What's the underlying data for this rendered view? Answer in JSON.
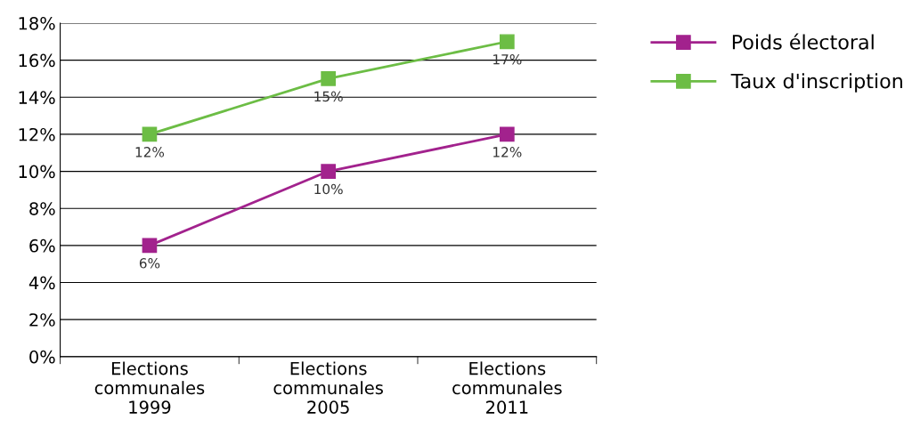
{
  "chart_data": {
    "type": "line",
    "categories": [
      "Elections\ncommunales\n1999",
      "Elections\ncommunales\n2005",
      "Elections\ncommunales\n2011"
    ],
    "series": [
      {
        "name": "Poids électoral",
        "color": "#a2228d",
        "values": [
          6,
          10,
          12
        ],
        "value_labels": [
          "6%",
          "10%",
          "12%"
        ]
      },
      {
        "name": "Taux d'inscription",
        "color": "#6cbd45",
        "values": [
          12,
          15,
          17
        ],
        "value_labels": [
          "12%",
          "15%",
          "17%"
        ]
      }
    ],
    "ylim": [
      0,
      18
    ],
    "yticks": [
      {
        "value": 0,
        "label": "0%"
      },
      {
        "value": 2,
        "label": "2%"
      },
      {
        "value": 4,
        "label": "4%"
      },
      {
        "value": 6,
        "label": "6%"
      },
      {
        "value": 8,
        "label": "8%"
      },
      {
        "value": 10,
        "label": "10%"
      },
      {
        "value": 12,
        "label": "12%"
      },
      {
        "value": 14,
        "label": "14%"
      },
      {
        "value": 16,
        "label": "16%"
      },
      {
        "value": 18,
        "label": "18%"
      }
    ],
    "grid": "y",
    "legend": "top right",
    "marker": "square",
    "line_style": "solid"
  }
}
